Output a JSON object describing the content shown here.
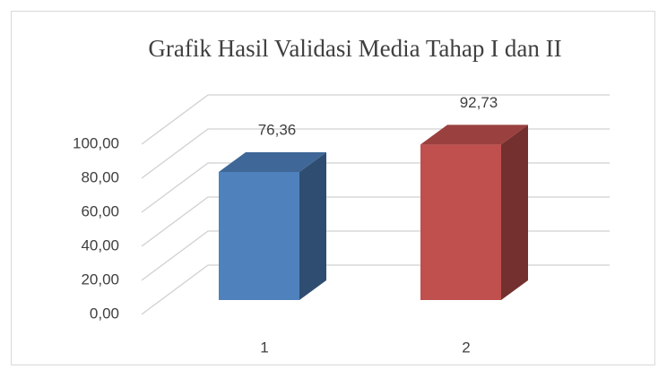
{
  "chart_data": {
    "type": "bar3d",
    "title": "Grafik Hasil Validasi Media Tahap I dan II",
    "categories": [
      "1",
      "2"
    ],
    "values": [
      76.36,
      92.73
    ],
    "value_labels": [
      "76,36",
      "92,73"
    ],
    "colors": [
      "#4f81bd",
      "#c0504d"
    ],
    "ylim": [
      0,
      100
    ],
    "yticks": [
      {
        "value": 0,
        "label": "0,00"
      },
      {
        "value": 20,
        "label": "20,00"
      },
      {
        "value": 40,
        "label": "40,00"
      },
      {
        "value": 60,
        "label": "60,00"
      },
      {
        "value": 80,
        "label": "80,00"
      },
      {
        "value": 100,
        "label": "100,00"
      }
    ],
    "grid": true
  }
}
